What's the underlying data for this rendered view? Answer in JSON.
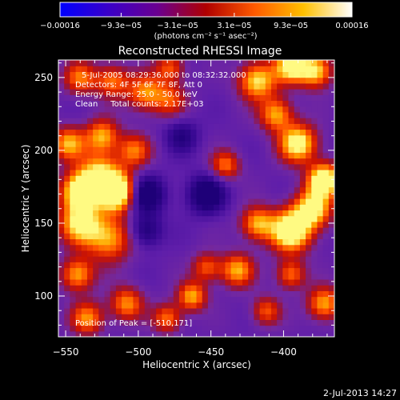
{
  "colorbar": {
    "tick_labels": [
      "−0.00016",
      "−9.3e−05",
      "−3.1e−05",
      "3.1e−05",
      "9.3e−05",
      "0.00016"
    ],
    "tick_values": [
      -0.00016,
      -9.3e-05,
      -3.1e-05,
      3.1e-05,
      9.3e-05,
      0.00016
    ],
    "range": [
      -0.00016,
      0.00016
    ],
    "unit_label": "(photons cm⁻² s⁻¹ asec⁻²)",
    "colors": [
      "#0000ff",
      "#3a00c8",
      "#6a0090",
      "#b00000",
      "#ff5a00",
      "#ffc000",
      "#ffffff"
    ]
  },
  "chart_data": {
    "type": "heatmap",
    "title": "Reconstructed RHESSI Image",
    "xlabel": "Heliocentric X (arcsec)",
    "ylabel": "Heliocentric Y (arcsec)",
    "xlim": [
      -555,
      -365
    ],
    "ylim": [
      72,
      262
    ],
    "x_ticks": [
      -550,
      -500,
      -450,
      -400
    ],
    "y_ticks": [
      100,
      150,
      200,
      250
    ],
    "info_lines": [
      "5-Jul-2005 08:29:36.000 to 08:32:32.000",
      "Detectors: 4F 5F 6F 7F 8F, Att 0",
      "Energy Range: 25.0 - 50.0 keV",
      "Clean     Total counts: 2.17E+03"
    ],
    "peak_label": "Position of Peak = [-510,171]",
    "peak": [
      -510,
      171
    ],
    "grid": false,
    "intensity_blobs": [
      {
        "x": -515,
        "y": 172,
        "sigma": 9,
        "amp": 1.0
      },
      {
        "x": -540,
        "y": 172,
        "sigma": 9,
        "amp": 0.85
      },
      {
        "x": -527,
        "y": 185,
        "sigma": 10,
        "amp": 0.55
      },
      {
        "x": -540,
        "y": 150,
        "sigma": 10,
        "amp": 0.65
      },
      {
        "x": -520,
        "y": 140,
        "sigma": 11,
        "amp": 0.55
      },
      {
        "x": -548,
        "y": 205,
        "sigma": 8,
        "amp": 0.55
      },
      {
        "x": -525,
        "y": 210,
        "sigma": 8,
        "amp": 0.55
      },
      {
        "x": -503,
        "y": 200,
        "sigma": 8,
        "amp": 0.45
      },
      {
        "x": -540,
        "y": 250,
        "sigma": 8,
        "amp": 0.45
      },
      {
        "x": -518,
        "y": 248,
        "sigma": 8,
        "amp": 0.45
      },
      {
        "x": -495,
        "y": 240,
        "sigma": 9,
        "amp": 0.5
      },
      {
        "x": -478,
        "y": 235,
        "sigma": 8,
        "amp": 0.35
      },
      {
        "x": -478,
        "y": 257,
        "sigma": 7,
        "amp": 0.4
      },
      {
        "x": -418,
        "y": 248,
        "sigma": 9,
        "amp": 0.65
      },
      {
        "x": -395,
        "y": 258,
        "sigma": 8,
        "amp": 0.7
      },
      {
        "x": -378,
        "y": 255,
        "sigma": 8,
        "amp": 0.65
      },
      {
        "x": -405,
        "y": 225,
        "sigma": 8,
        "amp": 0.55
      },
      {
        "x": -390,
        "y": 205,
        "sigma": 9,
        "amp": 0.75
      },
      {
        "x": -372,
        "y": 180,
        "sigma": 8,
        "amp": 0.85
      },
      {
        "x": -380,
        "y": 160,
        "sigma": 9,
        "amp": 0.7
      },
      {
        "x": -395,
        "y": 145,
        "sigma": 10,
        "amp": 0.85
      },
      {
        "x": -418,
        "y": 150,
        "sigma": 8,
        "amp": 0.55
      },
      {
        "x": -440,
        "y": 190,
        "sigma": 7,
        "amp": 0.45
      },
      {
        "x": -432,
        "y": 118,
        "sigma": 8,
        "amp": 0.55
      },
      {
        "x": -453,
        "y": 120,
        "sigma": 7,
        "amp": 0.4
      },
      {
        "x": -395,
        "y": 115,
        "sigma": 7,
        "amp": 0.45
      },
      {
        "x": -372,
        "y": 95,
        "sigma": 8,
        "amp": 0.55
      },
      {
        "x": -463,
        "y": 100,
        "sigma": 7,
        "amp": 0.55
      },
      {
        "x": -508,
        "y": 95,
        "sigma": 8,
        "amp": 0.5
      },
      {
        "x": -535,
        "y": 85,
        "sigma": 8,
        "amp": 0.5
      },
      {
        "x": -542,
        "y": 115,
        "sigma": 8,
        "amp": 0.55
      },
      {
        "x": -480,
        "y": 85,
        "sigma": 7,
        "amp": 0.45
      },
      {
        "x": -412,
        "y": 90,
        "sigma": 7,
        "amp": 0.4
      }
    ],
    "dark_spots": [
      {
        "x": -495,
        "y": 170,
        "sigma": 9,
        "amp": 0.5
      },
      {
        "x": -453,
        "y": 170,
        "sigma": 9,
        "amp": 0.5
      },
      {
        "x": -495,
        "y": 145,
        "sigma": 8,
        "amp": 0.35
      },
      {
        "x": -470,
        "y": 210,
        "sigma": 8,
        "amp": 0.3
      }
    ]
  },
  "footer": {
    "date_stamp": "2-Jul-2013 14:27"
  }
}
